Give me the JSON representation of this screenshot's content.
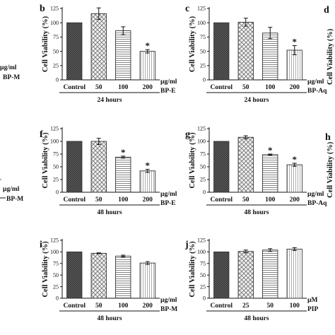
{
  "figure": {
    "fragments": {
      "left_b": [
        "µg/ml",
        "BP-M"
      ],
      "left_f": [
        "µg/ml",
        "BP-M"
      ],
      "d": "d",
      "h": "h",
      "right_b": "Cell Viability (%)",
      "right_f": "Cell Viability (%)"
    }
  },
  "chart_data": [
    {
      "panel": "b",
      "type": "bar",
      "ylabel": "Cell Viability (%)",
      "ylim": [
        0,
        125
      ],
      "yticks": [
        0,
        25,
        50,
        75,
        100,
        125
      ],
      "categories": [
        "Control",
        "50",
        "100",
        "200"
      ],
      "values": [
        100,
        116,
        86,
        50
      ],
      "errors": [
        0,
        10,
        7,
        3
      ],
      "significant": [
        false,
        false,
        false,
        true
      ],
      "unit": "µg/ml",
      "compound": "BP-E",
      "time": "24 hours"
    },
    {
      "panel": "c",
      "type": "bar",
      "ylabel": "Cell Viability (%)",
      "ylim": [
        0,
        125
      ],
      "yticks": [
        0,
        25,
        50,
        75,
        100,
        125
      ],
      "categories": [
        "Control",
        "50",
        "100",
        "200"
      ],
      "values": [
        100,
        101,
        82,
        52
      ],
      "errors": [
        0,
        7,
        10,
        8
      ],
      "significant": [
        false,
        false,
        false,
        true
      ],
      "unit": "µg/ml",
      "compound": "BP-Aq",
      "time": "24 hours"
    },
    {
      "panel": "f",
      "type": "bar",
      "ylabel": "Cell Viability (%)",
      "ylim": [
        0,
        125
      ],
      "yticks": [
        0,
        25,
        50,
        75,
        100,
        125
      ],
      "categories": [
        "Control",
        "50",
        "100",
        "200"
      ],
      "values": [
        100,
        100,
        69,
        42
      ],
      "errors": [
        0,
        6,
        2,
        3
      ],
      "significant": [
        false,
        false,
        true,
        true
      ],
      "unit": "µg/ml",
      "compound": "BP-E",
      "time": "48 hours"
    },
    {
      "panel": "g",
      "type": "bar",
      "ylabel": "Cell Viability (%)",
      "ylim": [
        0,
        125
      ],
      "yticks": [
        0,
        25,
        50,
        75,
        100,
        125
      ],
      "categories": [
        "Control",
        "50",
        "100",
        "200"
      ],
      "values": [
        100,
        108,
        74,
        54
      ],
      "errors": [
        0,
        3,
        1,
        3
      ],
      "significant": [
        false,
        false,
        true,
        true
      ],
      "unit": "µg/ml",
      "compound": "BP-Aq",
      "time": "48 hours"
    },
    {
      "panel": "i",
      "type": "bar",
      "ylabel": "Cell Viability (%)",
      "ylim": [
        0,
        125
      ],
      "yticks": [
        0,
        25,
        50,
        75,
        100,
        125
      ],
      "categories": [
        "Control",
        "50",
        "100",
        "200"
      ],
      "values": [
        100,
        97,
        91,
        76
      ],
      "errors": [
        0,
        1,
        2,
        3
      ],
      "significant": [
        false,
        false,
        false,
        false
      ],
      "unit": "µg/ml",
      "compound": "BP-M",
      "time": "48 hours"
    },
    {
      "panel": "j",
      "type": "bar",
      "ylabel": "Cell Viability (%)",
      "ylim": [
        0,
        125
      ],
      "yticks": [
        0,
        25,
        50,
        75,
        100,
        125
      ],
      "categories": [
        "Control",
        "25",
        "50",
        "100"
      ],
      "values": [
        100,
        101,
        104,
        106
      ],
      "errors": [
        0,
        3,
        3,
        3
      ],
      "significant": [
        false,
        false,
        false,
        false
      ],
      "unit": "µM",
      "compound": "PIP",
      "time": "48 hours"
    }
  ]
}
